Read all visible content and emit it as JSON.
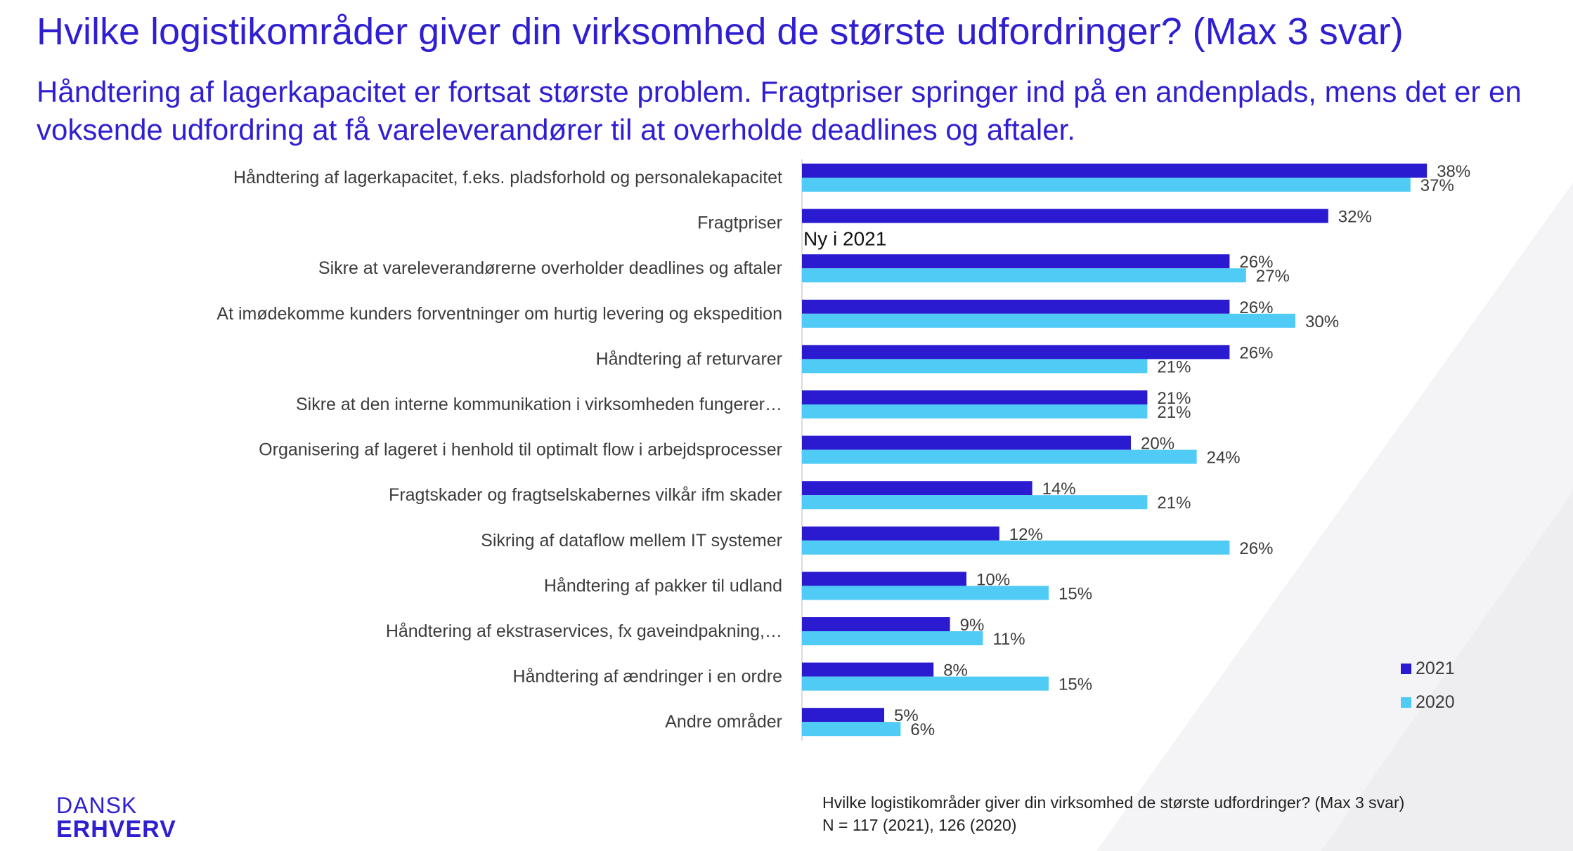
{
  "header": {
    "title": "Hvilke logistikområder giver din virksomhed de største udfordringer? (Max 3 svar)",
    "subtitle": "Håndtering af lagerkapacitet er fortsat største problem. Fragtpriser springer ind på en andenplads, mens det er en voksende udfordring at få vareleverandører til at overholde deadlines og aftaler."
  },
  "colors": {
    "accent": "#2f1fd1",
    "series_2021": "#2a1ad0",
    "series_2020": "#4fcbf5"
  },
  "chart_data": {
    "type": "bar",
    "orientation": "horizontal",
    "categories": [
      "Håndtering af lagerkapacitet, f.eks. pladsforhold og personalekapacitet",
      "Fragtpriser",
      "Sikre at vareleverandørerne overholder deadlines og aftaler",
      "At imødekomme kunders forventninger om hurtig levering og ekspedition",
      "Håndtering af returvarer",
      "Sikre at den interne kommunikation i virksomheden fungerer…",
      "Organisering af lageret i henhold til optimalt flow i arbejdsprocesser",
      "Fragtskader og fragtselskabernes vilkår ifm skader",
      "Sikring af dataflow mellem IT systemer",
      "Håndtering af pakker til udland",
      "Håndtering af ekstraservices, fx gaveindpakning,…",
      "Håndtering af ændringer i en ordre",
      "Andre områder"
    ],
    "series": [
      {
        "name": "2021",
        "color": "#2a1ad0",
        "values": [
          38,
          32,
          26,
          26,
          26,
          21,
          20,
          14,
          12,
          10,
          9,
          8,
          5
        ]
      },
      {
        "name": "2020",
        "color": "#4fcbf5",
        "values": [
          37,
          null,
          27,
          30,
          21,
          21,
          24,
          21,
          26,
          15,
          11,
          15,
          6
        ]
      }
    ],
    "value_suffix": "%",
    "annotations": [
      {
        "category_index": 1,
        "text": "Ny i 2021"
      }
    ],
    "legend": {
      "position": "bottom-right",
      "entries": [
        "2021",
        "2020"
      ]
    },
    "xlim": [
      0,
      40
    ],
    "grid": false
  },
  "footer": {
    "source_line1": "Hvilke logistikområder giver din virksomhed de største udfordringer? (Max 3 svar)",
    "source_line2": "N = 117 (2021), 126 (2020)"
  },
  "logo": {
    "line1": "DANSK",
    "line2": "ERHVERV"
  }
}
